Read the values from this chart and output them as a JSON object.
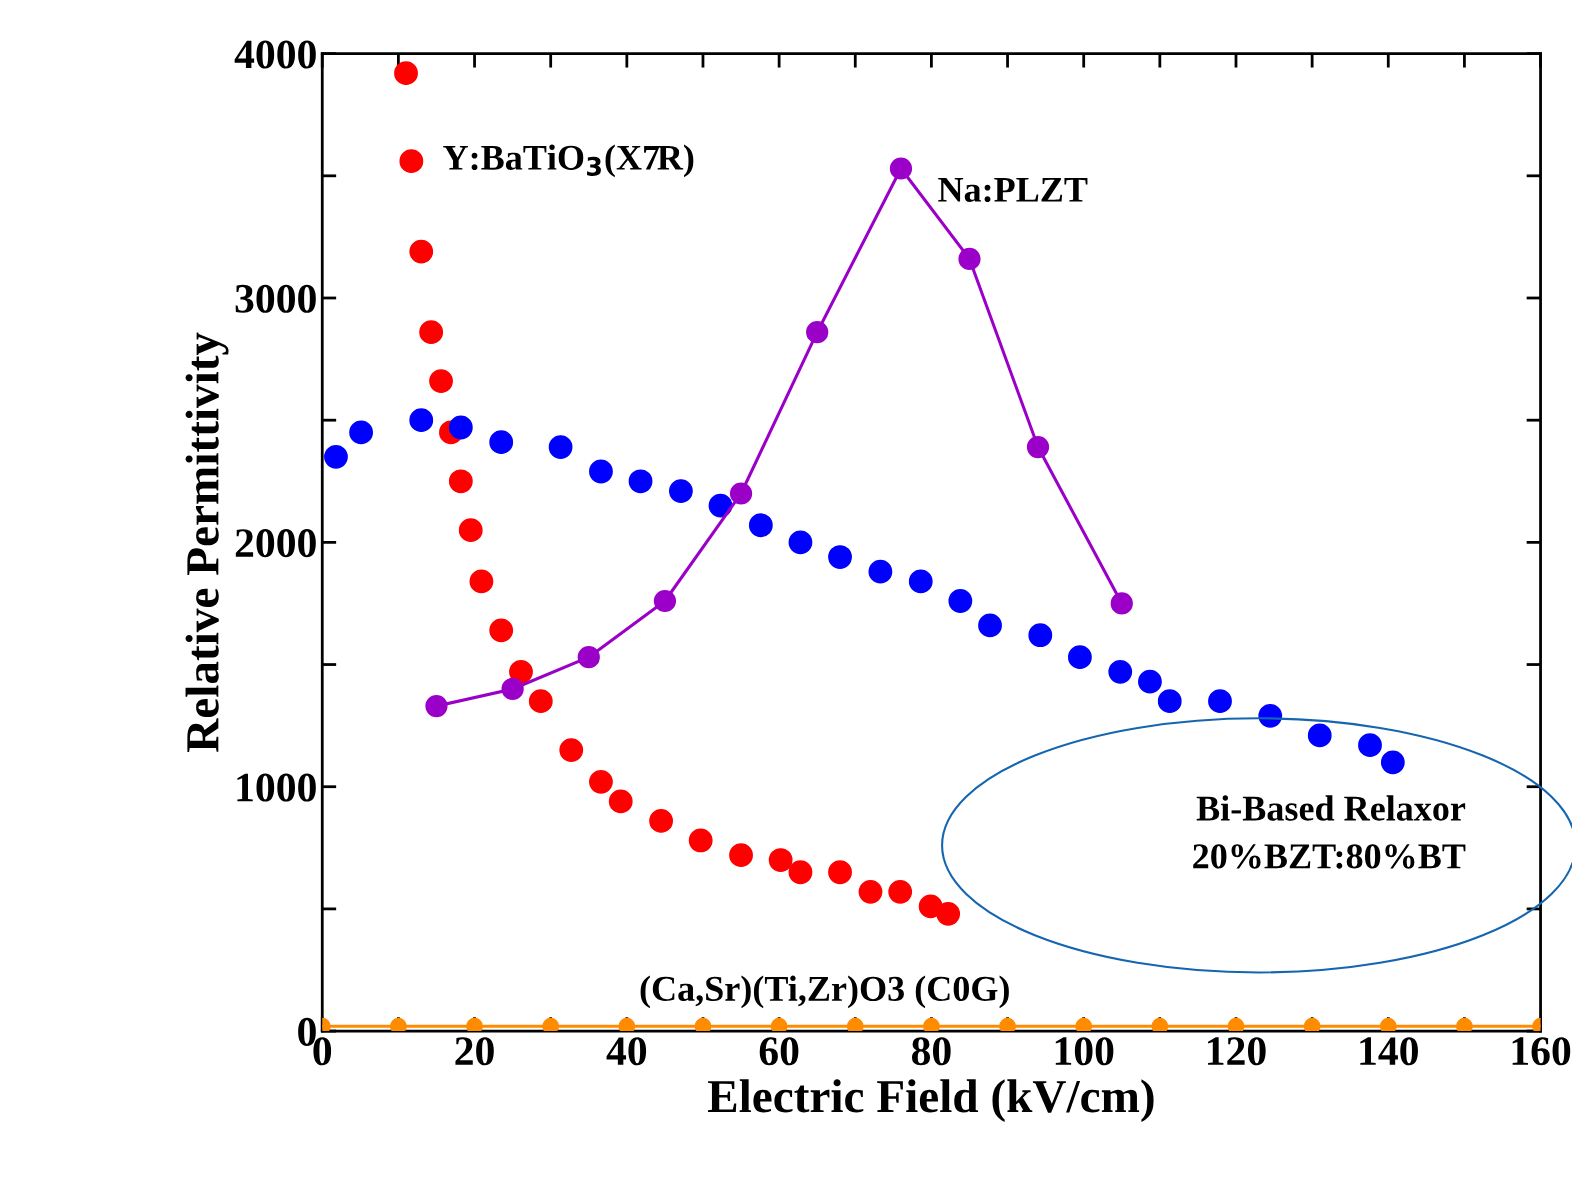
{
  "chart_data": {
    "type": "scatter",
    "xlabel": "Electric Field (kV/cm)",
    "ylabel": "Relative Permittivity",
    "xlim": [
      0,
      160
    ],
    "ylim": [
      0,
      4000
    ],
    "xticks": [
      0,
      {
        "value": 10,
        "label": null
      },
      20,
      {
        "value": 30,
        "label": null
      },
      40,
      {
        "value": 50,
        "label": null
      },
      60,
      {
        "value": 70,
        "label": null
      },
      80,
      {
        "value": 90,
        "label": null
      },
      100,
      {
        "value": 110,
        "label": null
      },
      120,
      {
        "value": 130,
        "label": null
      },
      140,
      {
        "value": 150,
        "label": null
      },
      160
    ],
    "yticks": [
      0,
      {
        "value": 500,
        "label": null
      },
      1000,
      {
        "value": 1500,
        "label": null
      },
      2000,
      {
        "value": 2500,
        "label": null
      },
      3000,
      {
        "value": 3500,
        "label": null
      },
      4000
    ],
    "grid": false,
    "marker": "circle",
    "line_style": "solid",
    "series": [
      {
        "name": "Y:BaTiO$_{3}$(X7R)",
        "color": "#ff0000",
        "x": [
          11,
          11.7,
          13,
          14.3,
          15.6,
          16.9,
          18.2,
          19.5,
          20.9,
          23.5,
          26.1,
          28.7,
          32.7,
          36.6,
          39.2,
          44.5,
          49.7,
          55,
          60.2,
          62.8,
          68,
          72,
          75.9,
          79.9,
          82.2
        ],
        "values": [
          3920,
          3560,
          3190,
          2860,
          2660,
          2450,
          2250,
          2050,
          1840,
          1640,
          1470,
          1350,
          1150,
          1020,
          940,
          860,
          780,
          720,
          700,
          650,
          650,
          570,
          570,
          510,
          480
        ]
      },
      {
        "name": "Bi-Based Relaxor\n20%BZT:80%BT",
        "color": "#0000ff",
        "x": [
          1.8,
          5.1,
          13,
          18.2,
          23.5,
          31.3,
          36.6,
          41.8,
          47.1,
          52.3,
          57.6,
          62.8,
          68,
          73.3,
          78.6,
          83.8,
          87.7,
          94.3,
          99.5,
          104.8,
          108.7,
          111.3,
          117.9,
          124.5,
          131,
          137.6,
          140.6
        ],
        "values": [
          2350,
          2450,
          2500,
          2470,
          2410,
          2390,
          2290,
          2250,
          2210,
          2150,
          2070,
          2000,
          1940,
          1880,
          1840,
          1760,
          1660,
          1620,
          1530,
          1470,
          1430,
          1350,
          1350,
          1290,
          1210,
          1170,
          1100
        ]
      },
      {
        "name": "Na:PLZT",
        "type": "line",
        "color": "#9b00c8",
        "x": [
          15,
          25,
          35,
          45,
          55,
          65,
          76,
          85,
          94,
          105
        ],
        "values": [
          1330,
          1400,
          1530,
          1760,
          2200,
          2860,
          3530,
          3160,
          2390,
          1750
        ]
      },
      {
        "name": "(Ca,Sr)(Ti,Zr)O3 (C0G)",
        "type": "line",
        "color": "#ff8c00",
        "x": [
          0,
          10,
          20,
          30,
          40,
          50,
          60,
          70,
          80,
          90,
          100,
          110,
          120,
          130,
          140,
          150,
          160
        ],
        "values": [
          20,
          20,
          20,
          20,
          20,
          20,
          20,
          20,
          20,
          20,
          20,
          20,
          20,
          20,
          20,
          20,
          20
        ]
      }
    ]
  }
}
